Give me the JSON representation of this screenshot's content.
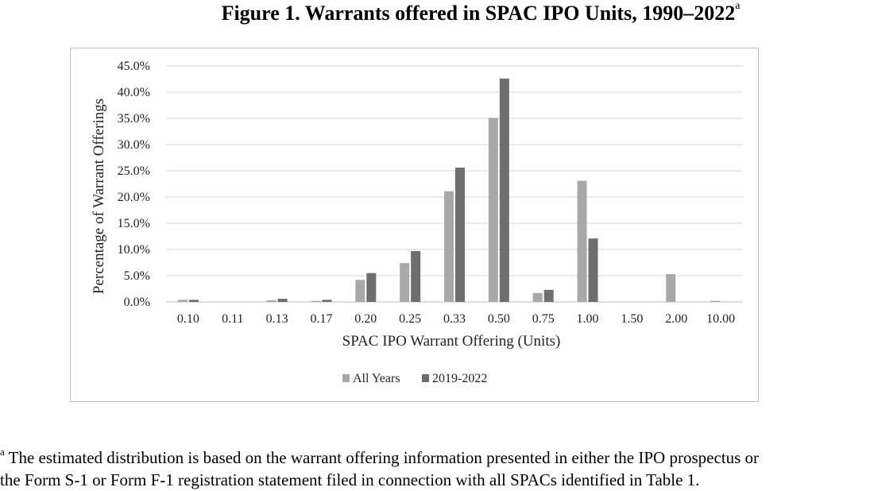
{
  "figure": {
    "title": "Figure 1. Warrants offered in SPAC IPO Units, 1990–2022",
    "title_marker": "a"
  },
  "footnote": {
    "marker": "a",
    "line1": " The estimated distribution is based on the warrant offering information presented in either the IPO prospectus or",
    "line2": "the Form S-1 or Form F-1 registration statement filed in connection with all SPACs identified in Table 1."
  },
  "chart_data": {
    "type": "bar",
    "categories": [
      "0.10",
      "0.11",
      "0.13",
      "0.17",
      "0.20",
      "0.25",
      "0.33",
      "0.50",
      "0.75",
      "1.00",
      "1.50",
      "2.00",
      "10.00"
    ],
    "series": [
      {
        "name": "All Years",
        "color": "#a8a8a8",
        "values": [
          0.4,
          0.0,
          0.3,
          0.2,
          4.2,
          7.4,
          21.1,
          35.1,
          1.7,
          23.1,
          0.0,
          5.3,
          0.2
        ]
      },
      {
        "name": "2019-2022",
        "color": "#6e6e6e",
        "values": [
          0.4,
          0.0,
          0.6,
          0.4,
          5.5,
          9.7,
          25.6,
          42.6,
          2.3,
          12.1,
          0.0,
          0.0,
          0.0
        ]
      }
    ],
    "xlabel": "SPAC IPO Warrant Offering (Units)",
    "ylabel": "Percentage of Warrant Offerings",
    "ylim": [
      0,
      45
    ],
    "yticks": [
      "0.0%",
      "5.0%",
      "10.0%",
      "15.0%",
      "20.0%",
      "25.0%",
      "30.0%",
      "35.0%",
      "40.0%",
      "45.0%"
    ],
    "grid": true,
    "legend_position": "bottom-center",
    "gridline_color": "#d6d6d6"
  }
}
